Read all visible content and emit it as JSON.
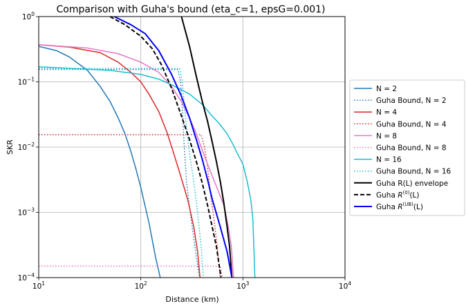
{
  "chart_data": {
    "type": "line",
    "title": "Comparison with Guha's bound (eta_c=1, epsG=0.001)",
    "xlabel": "Distance (km)",
    "ylabel": "SKR",
    "xscale": "log",
    "yscale": "log",
    "xlim": [
      10,
      10000
    ],
    "ylim": [
      0.0001,
      1
    ],
    "grid": true,
    "legend_position": "outside-right",
    "x_ticks": [
      {
        "value": 10,
        "base": "10",
        "exp": "1"
      },
      {
        "value": 100,
        "base": "10",
        "exp": "2"
      },
      {
        "value": 1000,
        "base": "10",
        "exp": "3"
      },
      {
        "value": 10000,
        "base": "10",
        "exp": "4"
      }
    ],
    "y_ticks": [
      {
        "value": 0.0001,
        "base": "10",
        "exp": "−4"
      },
      {
        "value": 0.001,
        "base": "10",
        "exp": "−3"
      },
      {
        "value": 0.01,
        "base": "10",
        "exp": "−2"
      },
      {
        "value": 0.1,
        "base": "10",
        "exp": "−1"
      },
      {
        "value": 1,
        "base": "10",
        "exp": "0"
      }
    ],
    "series": [
      {
        "name": "N = 2",
        "color": "#1f77b4",
        "dash": "solid",
        "points": [
          [
            10,
            0.35
          ],
          [
            15,
            0.3
          ],
          [
            20,
            0.24
          ],
          [
            30,
            0.15
          ],
          [
            40,
            0.085
          ],
          [
            50,
            0.05
          ],
          [
            60,
            0.028
          ],
          [
            70,
            0.016
          ],
          [
            80,
            0.0085
          ],
          [
            90,
            0.0045
          ],
          [
            100,
            0.0024
          ],
          [
            120,
            0.0007
          ],
          [
            140,
            0.0002
          ],
          [
            155,
            0.0001
          ]
        ]
      },
      {
        "name": "Guha Bound, N = 2",
        "color": "#1f77b4",
        "dash": "dotted",
        "points": [
          [
            10,
            0.155
          ],
          [
            230,
            0.155
          ],
          [
            245,
            0.1
          ],
          [
            255,
            0.04
          ],
          [
            265,
            0.012
          ],
          [
            280,
            0.003
          ],
          [
            300,
            0.0012
          ],
          [
            330,
            0.0004
          ],
          [
            355,
            0.00018
          ],
          [
            375,
            0.0001
          ]
        ]
      },
      {
        "name": "N = 4",
        "color": "#d62728",
        "dash": "solid",
        "points": [
          [
            10,
            0.37
          ],
          [
            20,
            0.34
          ],
          [
            40,
            0.28
          ],
          [
            60,
            0.2
          ],
          [
            80,
            0.14
          ],
          [
            100,
            0.1
          ],
          [
            120,
            0.065
          ],
          [
            150,
            0.035
          ],
          [
            180,
            0.017
          ],
          [
            210,
            0.008
          ],
          [
            250,
            0.0033
          ],
          [
            290,
            0.0015
          ],
          [
            330,
            0.0006
          ],
          [
            360,
            0.00025
          ],
          [
            380,
            0.0001
          ]
        ]
      },
      {
        "name": "Guha Bound, N = 4",
        "color": "#d62728",
        "dash": "dotted",
        "points": [
          [
            10,
            0.0155
          ],
          [
            390,
            0.0155
          ],
          [
            420,
            0.01
          ],
          [
            450,
            0.005
          ],
          [
            480,
            0.002
          ],
          [
            520,
            0.0008
          ],
          [
            560,
            0.0003
          ],
          [
            600,
            0.0001
          ]
        ]
      },
      {
        "name": "N = 8",
        "color": "#e377c2",
        "dash": "solid",
        "points": [
          [
            10,
            0.37
          ],
          [
            30,
            0.33
          ],
          [
            60,
            0.27
          ],
          [
            100,
            0.2
          ],
          [
            150,
            0.14
          ],
          [
            200,
            0.085
          ],
          [
            250,
            0.05
          ],
          [
            300,
            0.028
          ],
          [
            350,
            0.016
          ],
          [
            400,
            0.009
          ],
          [
            450,
            0.0055
          ],
          [
            550,
            0.0025
          ],
          [
            650,
            0.0013
          ],
          [
            720,
            0.0006
          ],
          [
            770,
            0.0003
          ],
          [
            810,
            0.0001
          ]
        ]
      },
      {
        "name": "Guha Bound, N = 8",
        "color": "#e377c2",
        "dash": "dotted",
        "points": [
          [
            10,
            0.00015
          ],
          [
            600,
            0.00015
          ],
          [
            630,
            0.0001
          ]
        ]
      },
      {
        "name": "N = 16",
        "color": "#17becf",
        "dash": "solid",
        "points": [
          [
            10,
            0.17
          ],
          [
            50,
            0.15
          ],
          [
            100,
            0.13
          ],
          [
            150,
            0.11
          ],
          [
            200,
            0.09
          ],
          [
            300,
            0.065
          ],
          [
            400,
            0.045
          ],
          [
            500,
            0.03
          ],
          [
            600,
            0.022
          ],
          [
            700,
            0.016
          ],
          [
            800,
            0.011
          ],
          [
            900,
            0.0075
          ],
          [
            1000,
            0.0055
          ],
          [
            1100,
            0.003
          ],
          [
            1200,
            0.0015
          ],
          [
            1250,
            0.0008
          ],
          [
            1280,
            0.0003
          ],
          [
            1310,
            0.0001
          ]
        ]
      },
      {
        "name": "Guha Bound, N = 16",
        "color": "#17becf",
        "dash": "dotted",
        "points": [
          [
            10,
            0.16
          ],
          [
            240,
            0.16
          ],
          [
            255,
            0.1
          ],
          [
            265,
            0.05
          ],
          [
            280,
            0.02
          ],
          [
            300,
            0.008
          ],
          [
            330,
            0.003
          ],
          [
            360,
            0.001
          ],
          [
            390,
            0.0003
          ],
          [
            410,
            0.0001
          ]
        ]
      },
      {
        "name": "Guha R(L) envelope",
        "color": "#000000",
        "dash": "solid",
        "points": [
          [
            250,
            1.0
          ],
          [
            300,
            0.35
          ],
          [
            350,
            0.12
          ],
          [
            400,
            0.05
          ],
          [
            450,
            0.025
          ],
          [
            500,
            0.012
          ],
          [
            550,
            0.006
          ],
          [
            600,
            0.003
          ],
          [
            650,
            0.0014
          ],
          [
            700,
            0.0006
          ],
          [
            740,
            0.0003
          ],
          [
            780,
            0.0001
          ]
        ]
      },
      {
        "name": "Guha R^{(0)}(L)",
        "label_html": "Guha <tspan font-style='italic'>R</tspan>",
        "color": "#000000",
        "dash": "dashed",
        "points": [
          [
            50,
            1.0
          ],
          [
            70,
            0.75
          ],
          [
            100,
            0.5
          ],
          [
            130,
            0.32
          ],
          [
            160,
            0.18
          ],
          [
            200,
            0.08
          ],
          [
            250,
            0.03
          ],
          [
            300,
            0.013
          ],
          [
            350,
            0.006
          ],
          [
            400,
            0.0028
          ],
          [
            450,
            0.0013
          ],
          [
            500,
            0.0006
          ],
          [
            550,
            0.0003
          ],
          [
            610,
            0.0001
          ]
        ]
      },
      {
        "name": "Guha R^{(UB)}(L)",
        "color": "#0000ff",
        "dash": "solid",
        "points": [
          [
            55,
            1.0
          ],
          [
            80,
            0.75
          ],
          [
            110,
            0.55
          ],
          [
            150,
            0.3
          ],
          [
            200,
            0.13
          ],
          [
            250,
            0.06
          ],
          [
            300,
            0.028
          ],
          [
            350,
            0.013
          ],
          [
            400,
            0.0065
          ],
          [
            450,
            0.0032
          ],
          [
            500,
            0.0016
          ],
          [
            600,
            0.0006
          ],
          [
            700,
            0.00025
          ],
          [
            780,
            0.0001
          ]
        ]
      }
    ],
    "legend": [
      {
        "text": "N = 2"
      },
      {
        "text": "Guha Bound, N = 2"
      },
      {
        "text": "N = 4"
      },
      {
        "text": "Guha Bound, N = 4"
      },
      {
        "text": "N = 8"
      },
      {
        "text": "Guha Bound, N = 8"
      },
      {
        "text": "N = 16"
      },
      {
        "text": "Guha Bound, N = 16"
      },
      {
        "text": "Guha R(L) envelope"
      },
      {
        "text": "Guha ",
        "math": "R",
        "sup": "(0)",
        "tail": "(L)"
      },
      {
        "text": "Guha ",
        "math": "R",
        "sup": "(UB)",
        "tail": "(L)"
      }
    ]
  }
}
